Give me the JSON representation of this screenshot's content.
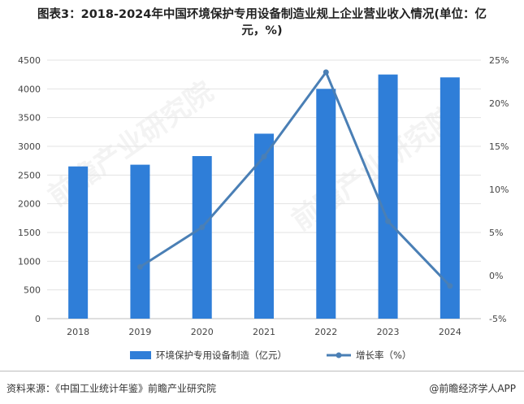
{
  "title": {
    "line1": "图表3：2018-2024年中国环境保护专用设备制造业规上企业营业收入情况(单位：亿",
    "line2": "元，%)"
  },
  "watermark": "前瞻产业研究院",
  "source": "资料来源：《中国工业统计年鉴》前瞻产业研究院",
  "credit": "@前瞻经济学人APP",
  "colors": {
    "bar": "#2f7ed8",
    "line": "#4a7fb5"
  },
  "chart_data": {
    "type": "bar+line",
    "categories": [
      "2018",
      "2019",
      "2020",
      "2021",
      "2022",
      "2023",
      "2024"
    ],
    "series": [
      {
        "name": "环境保护专用设备制造（亿元）",
        "type": "bar",
        "axis": "left",
        "values": [
          2650,
          2680,
          2830,
          3220,
          4000,
          4250,
          4200
        ]
      },
      {
        "name": "增长率（%）",
        "type": "line",
        "axis": "right",
        "values": [
          null,
          1.0,
          5.6,
          13.8,
          23.6,
          6.3,
          -1.2
        ]
      }
    ],
    "left_axis": {
      "ylim": [
        0,
        4500
      ],
      "ticks": [
        "0",
        "500",
        "1000",
        "1500",
        "2000",
        "2500",
        "3000",
        "3500",
        "4000",
        "4500"
      ]
    },
    "right_axis": {
      "ylim": [
        -5,
        25
      ],
      "ticks": [
        "-5%",
        "0%",
        "5%",
        "10%",
        "15%",
        "20%",
        "25%"
      ]
    },
    "legend_position": "bottom",
    "grid": true
  }
}
